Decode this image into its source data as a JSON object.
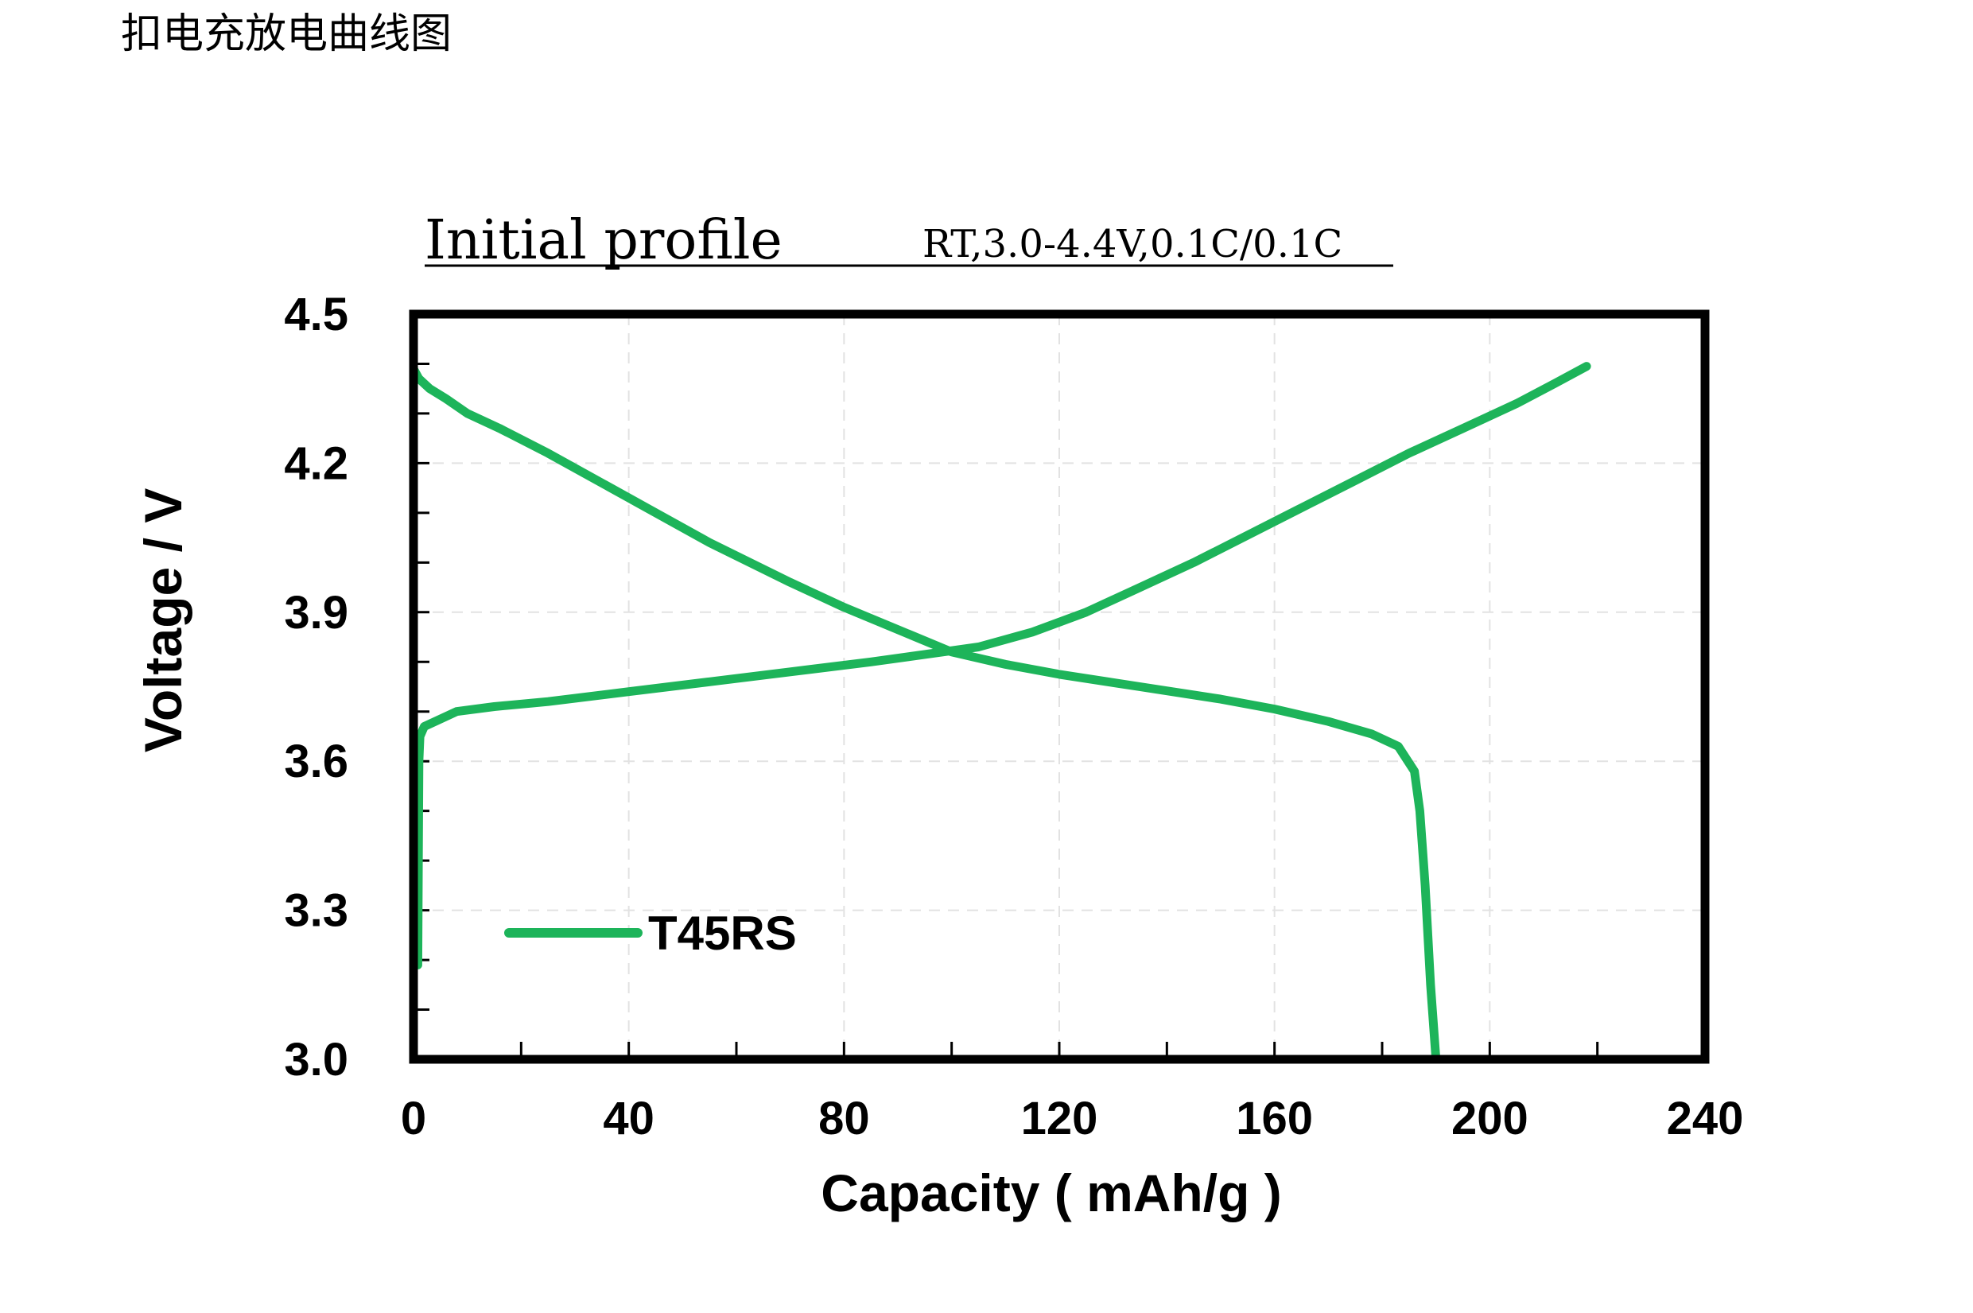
{
  "heading": "扣电充放电曲线图",
  "chart_data": {
    "type": "line",
    "title": "Initial profile",
    "subtitle": "RT,3.0-4.4V,0.1C/0.1C",
    "xlabel": "Capacity ( mAh/g )",
    "ylabel": "Voltage / V",
    "xlim": [
      0,
      240
    ],
    "ylim": [
      3.0,
      4.5
    ],
    "x_ticks": [
      0,
      40,
      80,
      120,
      160,
      200,
      240
    ],
    "y_ticks": [
      3.0,
      3.3,
      3.6,
      3.9,
      4.2,
      4.5
    ],
    "x_tick_labels": [
      "0",
      "40",
      "80",
      "120",
      "160",
      "200",
      "240"
    ],
    "y_tick_labels": [
      "3.0",
      "3.3",
      "3.6",
      "3.9",
      "4.2",
      "4.5"
    ],
    "grid": true,
    "legend_position": "bottom-left",
    "line_color": "#1db45a",
    "legend": [
      "T45RS"
    ],
    "series": [
      {
        "name": "T45RS",
        "segment": "charge",
        "x": [
          0.8,
          0.9,
          1.0,
          1.2,
          1.6,
          2,
          4,
          8,
          15,
          25,
          40,
          55,
          70,
          85,
          95,
          105,
          115,
          125,
          135,
          145,
          155,
          165,
          175,
          185,
          195,
          205,
          212,
          218
        ],
        "y": [
          3.19,
          3.4,
          3.6,
          3.65,
          3.66,
          3.67,
          3.68,
          3.7,
          3.71,
          3.72,
          3.74,
          3.76,
          3.78,
          3.8,
          3.815,
          3.83,
          3.86,
          3.9,
          3.95,
          4.0,
          4.055,
          4.11,
          4.165,
          4.22,
          4.27,
          4.32,
          4.36,
          4.395
        ]
      },
      {
        "name": "T45RS",
        "segment": "discharge",
        "x": [
          0,
          1,
          3,
          6,
          10,
          16,
          25,
          40,
          55,
          70,
          80,
          90,
          100,
          110,
          120,
          135,
          150,
          160,
          170,
          178,
          183,
          186,
          187,
          188,
          189,
          190
        ],
        "y": [
          4.39,
          4.37,
          4.35,
          4.33,
          4.3,
          4.27,
          4.22,
          4.13,
          4.04,
          3.96,
          3.91,
          3.865,
          3.82,
          3.795,
          3.775,
          3.75,
          3.725,
          3.705,
          3.68,
          3.655,
          3.63,
          3.58,
          3.5,
          3.35,
          3.15,
          3.0
        ]
      }
    ]
  }
}
